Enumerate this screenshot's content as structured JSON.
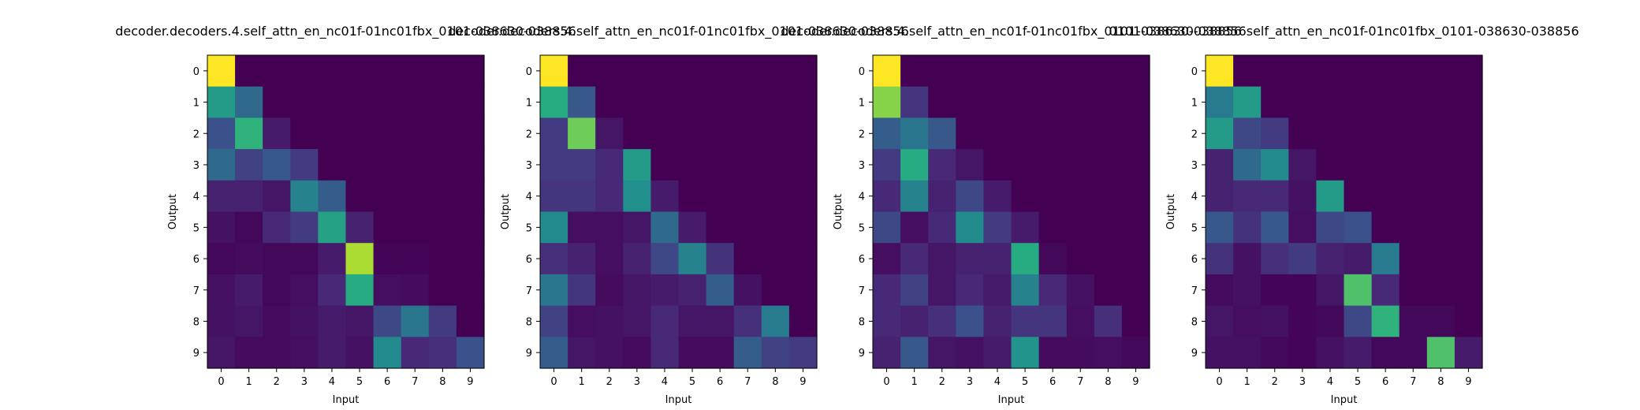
{
  "chart_data": [
    {
      "type": "heatmap",
      "title": "decoder.decoders.4.self_attn_en_nc01f-01nc01fbx_0101-038630-038856",
      "xlabel": "Input",
      "ylabel": "Output",
      "x_ticks": [
        "0",
        "1",
        "2",
        "3",
        "4",
        "5",
        "6",
        "7",
        "8",
        "9"
      ],
      "y_ticks": [
        "0",
        "1",
        "2",
        "3",
        "4",
        "5",
        "6",
        "7",
        "8",
        "9"
      ],
      "colormap": "viridis",
      "values": [
        [
          1.0,
          0,
          0,
          0,
          0,
          0,
          0,
          0,
          0,
          0
        ],
        [
          0.55,
          0.35,
          0,
          0,
          0,
          0,
          0,
          0,
          0,
          0
        ],
        [
          0.25,
          0.65,
          0.08,
          0,
          0,
          0,
          0,
          0,
          0,
          0
        ],
        [
          0.35,
          0.2,
          0.28,
          0.18,
          0,
          0,
          0,
          0,
          0,
          0
        ],
        [
          0.1,
          0.1,
          0.06,
          0.45,
          0.3,
          0,
          0,
          0,
          0,
          0
        ],
        [
          0.05,
          0.02,
          0.12,
          0.18,
          0.58,
          0.1,
          0,
          0,
          0,
          0
        ],
        [
          0.02,
          0.03,
          0.02,
          0.02,
          0.08,
          0.88,
          0.01,
          0.01,
          0,
          0
        ],
        [
          0.05,
          0.08,
          0.02,
          0.04,
          0.12,
          0.62,
          0.04,
          0.03,
          0,
          0
        ],
        [
          0.05,
          0.06,
          0.03,
          0.05,
          0.08,
          0.06,
          0.22,
          0.4,
          0.18,
          0
        ],
        [
          0.06,
          0.03,
          0.03,
          0.04,
          0.08,
          0.05,
          0.48,
          0.12,
          0.14,
          0.25
        ]
      ]
    },
    {
      "type": "heatmap",
      "title": "decoder.decoders.4.self_attn_en_nc01f-01nc01fbx_0101-038630-038856",
      "xlabel": "Input",
      "ylabel": "Output",
      "x_ticks": [
        "0",
        "1",
        "2",
        "3",
        "4",
        "5",
        "6",
        "7",
        "8",
        "9"
      ],
      "y_ticks": [
        "0",
        "1",
        "2",
        "3",
        "4",
        "5",
        "6",
        "7",
        "8",
        "9"
      ],
      "colormap": "viridis",
      "values": [
        [
          1.0,
          0,
          0,
          0,
          0,
          0,
          0,
          0,
          0,
          0
        ],
        [
          0.62,
          0.28,
          0,
          0,
          0,
          0,
          0,
          0,
          0,
          0
        ],
        [
          0.18,
          0.78,
          0.06,
          0,
          0,
          0,
          0,
          0,
          0,
          0
        ],
        [
          0.18,
          0.18,
          0.12,
          0.55,
          0,
          0,
          0,
          0,
          0,
          0
        ],
        [
          0.16,
          0.16,
          0.12,
          0.5,
          0.08,
          0,
          0,
          0,
          0,
          0
        ],
        [
          0.48,
          0.04,
          0.04,
          0.06,
          0.35,
          0.08,
          0,
          0,
          0,
          0
        ],
        [
          0.14,
          0.1,
          0.04,
          0.1,
          0.22,
          0.45,
          0.15,
          0,
          0,
          0
        ],
        [
          0.4,
          0.16,
          0.03,
          0.06,
          0.08,
          0.1,
          0.3,
          0.05,
          0,
          0
        ],
        [
          0.2,
          0.04,
          0.05,
          0.06,
          0.12,
          0.06,
          0.06,
          0.14,
          0.42,
          0
        ],
        [
          0.3,
          0.06,
          0.05,
          0.03,
          0.12,
          0.03,
          0.03,
          0.3,
          0.2,
          0.18
        ]
      ]
    },
    {
      "type": "heatmap",
      "title": "decoder.decoders.4.self_attn_en_nc01f-01nc01fbx_0101-038630-038856",
      "xlabel": "Input",
      "ylabel": "Output",
      "x_ticks": [
        "0",
        "1",
        "2",
        "3",
        "4",
        "5",
        "6",
        "7",
        "8",
        "9"
      ],
      "y_ticks": [
        "0",
        "1",
        "2",
        "3",
        "4",
        "5",
        "6",
        "7",
        "8",
        "9"
      ],
      "colormap": "viridis",
      "values": [
        [
          1.0,
          0,
          0,
          0,
          0,
          0,
          0,
          0,
          0,
          0
        ],
        [
          0.82,
          0.16,
          0,
          0,
          0,
          0,
          0,
          0,
          0,
          0
        ],
        [
          0.3,
          0.4,
          0.28,
          0,
          0,
          0,
          0,
          0,
          0,
          0
        ],
        [
          0.18,
          0.62,
          0.12,
          0.06,
          0,
          0,
          0,
          0,
          0,
          0
        ],
        [
          0.12,
          0.45,
          0.1,
          0.22,
          0.08,
          0,
          0,
          0,
          0,
          0
        ],
        [
          0.22,
          0.04,
          0.12,
          0.48,
          0.18,
          0.08,
          0,
          0,
          0,
          0
        ],
        [
          0.04,
          0.12,
          0.06,
          0.1,
          0.1,
          0.62,
          0.02,
          0,
          0,
          0
        ],
        [
          0.12,
          0.2,
          0.06,
          0.12,
          0.08,
          0.45,
          0.12,
          0.05,
          0,
          0
        ],
        [
          0.12,
          0.1,
          0.14,
          0.25,
          0.1,
          0.16,
          0.16,
          0.04,
          0.14,
          0
        ],
        [
          0.1,
          0.28,
          0.06,
          0.05,
          0.08,
          0.52,
          0.03,
          0.03,
          0.04,
          0.02
        ]
      ]
    },
    {
      "type": "heatmap",
      "title": "0101-038630-038856self_attn_en_nc01f-01nc01fbx_0101-038630-038856",
      "xlabel": "Input",
      "ylabel": "Output",
      "x_ticks": [
        "0",
        "1",
        "2",
        "3",
        "4",
        "5",
        "6",
        "7",
        "8",
        "9"
      ],
      "y_ticks": [
        "0",
        "1",
        "2",
        "3",
        "4",
        "5",
        "6",
        "7",
        "8",
        "9"
      ],
      "colormap": "viridis",
      "values": [
        [
          1.0,
          0,
          0,
          0,
          0,
          0,
          0,
          0,
          0,
          0
        ],
        [
          0.42,
          0.55,
          0,
          0,
          0,
          0,
          0,
          0,
          0,
          0
        ],
        [
          0.55,
          0.22,
          0.18,
          0,
          0,
          0,
          0,
          0,
          0,
          0
        ],
        [
          0.1,
          0.35,
          0.48,
          0.06,
          0,
          0,
          0,
          0,
          0,
          0
        ],
        [
          0.1,
          0.12,
          0.12,
          0.05,
          0.55,
          0,
          0,
          0,
          0,
          0
        ],
        [
          0.28,
          0.15,
          0.28,
          0.04,
          0.22,
          0.25,
          0,
          0,
          0,
          0
        ],
        [
          0.15,
          0.05,
          0.14,
          0.18,
          0.1,
          0.08,
          0.42,
          0,
          0,
          0
        ],
        [
          0.03,
          0.05,
          0.01,
          0.01,
          0.06,
          0.72,
          0.12,
          0,
          0,
          0
        ],
        [
          0.06,
          0.04,
          0.05,
          0.01,
          0.02,
          0.22,
          0.65,
          0.02,
          0.02,
          0
        ],
        [
          0.05,
          0.05,
          0.02,
          0.01,
          0.05,
          0.08,
          0.02,
          0.02,
          0.72,
          0.08
        ]
      ]
    }
  ]
}
